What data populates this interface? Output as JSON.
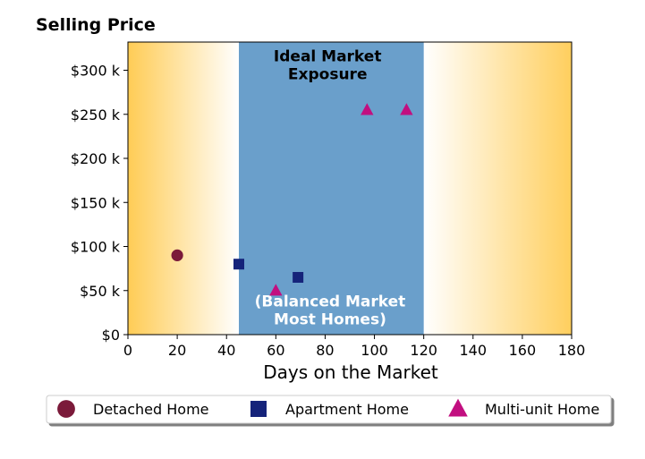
{
  "chart_data": {
    "type": "scatter",
    "title": "Selling Price",
    "xlabel": "Days on the Market",
    "ylabel": "",
    "xlim": [
      0,
      180
    ],
    "ylim": [
      0,
      332000
    ],
    "x_ticks": [
      0,
      20,
      40,
      60,
      80,
      100,
      120,
      140,
      160,
      180
    ],
    "x_tick_labels": [
      "0",
      "20",
      "40",
      "60",
      "80",
      "100",
      "120",
      "140",
      "160",
      "180"
    ],
    "y_ticks": [
      0,
      50000,
      100000,
      150000,
      200000,
      250000,
      300000
    ],
    "y_tick_labels": [
      "$0",
      "$50 k",
      "$100 k",
      "$150 k",
      "$200 k",
      "$250 k",
      "$300 k"
    ],
    "grid": false,
    "legend_position": "bottom",
    "background_regions": [
      {
        "x_start": 0,
        "x_end": 45,
        "style": "gradient",
        "color": "#ffcc55"
      },
      {
        "x_start": 45,
        "x_end": 120,
        "style": "solid",
        "color": "#6a9fcb"
      },
      {
        "x_start": 120,
        "x_end": 180,
        "style": "gradient",
        "color": "#ffcc55"
      }
    ],
    "annotations": [
      {
        "lines": [
          "Ideal Market",
          "Exposure"
        ],
        "x": 81,
        "y": 310000,
        "color": "#000000"
      },
      {
        "lines": [
          "(Balanced Market",
          "Most Homes)"
        ],
        "x": 82,
        "y": 32000,
        "color": "#ffffff"
      }
    ],
    "series": [
      {
        "name": "Detached Home",
        "marker": "circle",
        "color": "#7b1a3a",
        "points": [
          {
            "x": 20,
            "y": 90000
          }
        ]
      },
      {
        "name": "Apartment Home",
        "marker": "square",
        "color": "#15237a",
        "points": [
          {
            "x": 45,
            "y": 80000
          },
          {
            "x": 69,
            "y": 65000
          }
        ]
      },
      {
        "name": "Multi-unit Home",
        "marker": "triangle",
        "color": "#c20f80",
        "points": [
          {
            "x": 60,
            "y": 50000
          },
          {
            "x": 97,
            "y": 255000
          },
          {
            "x": 113,
            "y": 255000
          }
        ]
      }
    ]
  }
}
